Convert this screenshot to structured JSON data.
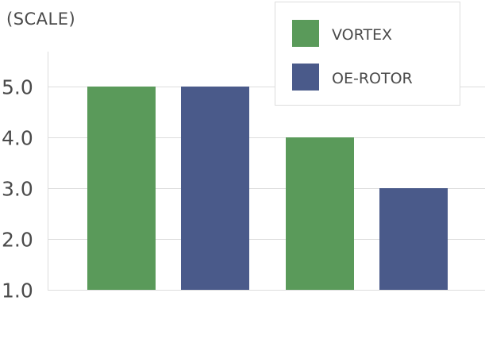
{
  "chart_data": {
    "type": "bar",
    "title": "",
    "ylabel": "(SCALE)",
    "xlabel": "",
    "groups": 2,
    "series": [
      {
        "name": "VORTEX",
        "color": "#5a9a5a",
        "values": [
          5.0,
          4.0
        ]
      },
      {
        "name": "OE-ROTOR",
        "color": "#4a5a8a",
        "values": [
          5.0,
          3.0
        ]
      }
    ],
    "ylim": [
      1.0,
      5.0
    ],
    "yticks": [
      "1.0",
      "2.0",
      "3.0",
      "4.0",
      "5.0"
    ],
    "grid": true,
    "legend_position": "top-right"
  }
}
